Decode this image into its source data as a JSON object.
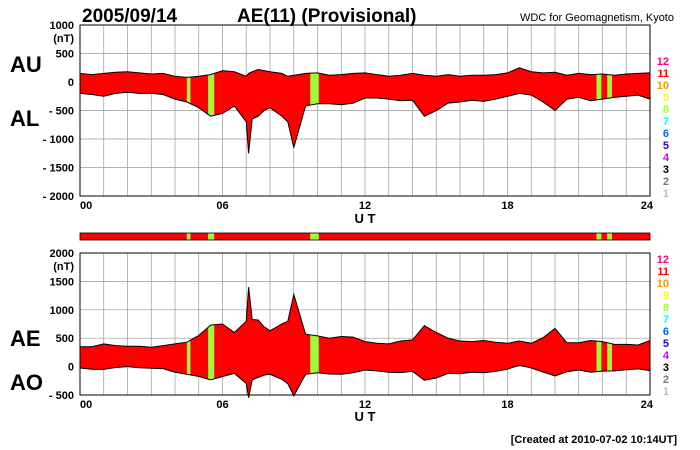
{
  "header": {
    "date": "2005/09/14",
    "title": "AE(11) (Provisional)",
    "credit": "WDC for Geomagnetism, Kyoto"
  },
  "footer": "[Created at 2010-07-02 10:14UT]",
  "x_ticks": [
    "00",
    "06",
    "12",
    "18",
    "24"
  ],
  "xlabel": "U T",
  "top_panel": {
    "unit": "(nT)",
    "labels": [
      "AU",
      "AL"
    ],
    "ylim": [
      -2000,
      1000
    ],
    "yticks": [
      {
        "value": 1000,
        "label": "1000"
      },
      {
        "value": 500,
        "label": "500"
      },
      {
        "value": 0,
        "label": "0"
      },
      {
        "value": -500,
        "label": "- 500"
      },
      {
        "value": -1000,
        "label": "- 1000"
      },
      {
        "value": -1500,
        "label": "- 1500"
      },
      {
        "value": -2000,
        "label": "- 2000"
      }
    ]
  },
  "bottom_panel": {
    "unit": "(nT)",
    "labels": [
      "AE",
      "AO"
    ],
    "ylim": [
      -500,
      2000
    ],
    "yticks": [
      {
        "value": 2000,
        "label": "2000"
      },
      {
        "value": 1500,
        "label": "1500"
      },
      {
        "value": 1000,
        "label": "1000"
      },
      {
        "value": 500,
        "label": "500"
      },
      {
        "value": 0,
        "label": "0"
      },
      {
        "value": -500,
        "label": "- 500"
      }
    ]
  },
  "station_levels": [
    {
      "label": "12",
      "color": "#ff0080"
    },
    {
      "label": "11",
      "color": "#ff0000"
    },
    {
      "label": "10",
      "color": "#ff9900"
    },
    {
      "label": "9",
      "color": "#ffff00"
    },
    {
      "label": "8",
      "color": "#99ff33"
    },
    {
      "label": "7",
      "color": "#00ffff"
    },
    {
      "label": "6",
      "color": "#0066ff"
    },
    {
      "label": "5",
      "color": "#3300cc"
    },
    {
      "label": "4",
      "color": "#cc00ff"
    },
    {
      "label": "3",
      "color": "#000000"
    },
    {
      "label": "2",
      "color": "#777777"
    },
    {
      "label": "1",
      "color": "#bbbbbb"
    }
  ],
  "colors": {
    "fill_stations_11": "#ffff00",
    "fill_stations_8": "#99ff33",
    "grid": "#999999",
    "line": "#000000"
  },
  "chart_data": {
    "type": "area",
    "x_unit": "UT hours",
    "xlim": [
      0,
      24
    ],
    "band_colors": [
      {
        "x0": 0.0,
        "x1": 4.5,
        "level": 11
      },
      {
        "x0": 4.5,
        "x1": 4.65,
        "level": 8
      },
      {
        "x0": 4.65,
        "x1": 5.4,
        "level": 11
      },
      {
        "x0": 5.4,
        "x1": 5.65,
        "level": 8
      },
      {
        "x0": 5.65,
        "x1": 9.7,
        "level": 11
      },
      {
        "x0": 9.7,
        "x1": 10.05,
        "level": 8
      },
      {
        "x0": 10.05,
        "x1": 21.75,
        "level": 11
      },
      {
        "x0": 21.75,
        "x1": 21.95,
        "level": 8
      },
      {
        "x0": 21.95,
        "x1": 22.2,
        "level": 11
      },
      {
        "x0": 22.2,
        "x1": 22.4,
        "level": 8
      },
      {
        "x0": 22.4,
        "x1": 24.0,
        "level": 11
      }
    ],
    "x": [
      0,
      0.5,
      1,
      1.5,
      2,
      2.5,
      3,
      3.5,
      4,
      4.5,
      5,
      5.5,
      6,
      6.5,
      7,
      7.1,
      7.25,
      7.5,
      7.75,
      8,
      8.5,
      8.75,
      9,
      9.5,
      10,
      10.5,
      11,
      11.5,
      12,
      12.5,
      13,
      13.5,
      14,
      14.5,
      15,
      15.5,
      16,
      16.5,
      17,
      17.5,
      18,
      18.5,
      19,
      19.5,
      20,
      20.5,
      21,
      21.5,
      22,
      22.5,
      23,
      23.5,
      24
    ],
    "series": [
      {
        "name": "AU",
        "values": [
          150,
          130,
          150,
          170,
          180,
          160,
          140,
          150,
          100,
          80,
          100,
          130,
          200,
          180,
          100,
          150,
          180,
          220,
          200,
          180,
          150,
          100,
          120,
          150,
          160,
          120,
          130,
          150,
          160,
          130,
          100,
          120,
          150,
          120,
          100,
          130,
          100,
          120,
          120,
          130,
          160,
          250,
          180,
          160,
          170,
          120,
          150,
          130,
          140,
          120,
          140,
          150,
          160
        ]
      },
      {
        "name": "AL",
        "values": [
          -200,
          -220,
          -250,
          -200,
          -180,
          -200,
          -200,
          -220,
          -300,
          -350,
          -450,
          -600,
          -550,
          -420,
          -700,
          -1250,
          -650,
          -600,
          -500,
          -450,
          -600,
          -700,
          -1150,
          -420,
          -380,
          -380,
          -400,
          -370,
          -280,
          -280,
          -300,
          -330,
          -320,
          -600,
          -500,
          -370,
          -350,
          -320,
          -340,
          -300,
          -250,
          -200,
          -230,
          -350,
          -500,
          -300,
          -270,
          -330,
          -300,
          -270,
          -250,
          -230,
          -300
        ]
      },
      {
        "name": "AE",
        "values": [
          350,
          350,
          400,
          370,
          360,
          360,
          340,
          370,
          400,
          430,
          550,
          730,
          750,
          600,
          800,
          1400,
          830,
          820,
          700,
          630,
          750,
          800,
          1270,
          570,
          540,
          500,
          530,
          520,
          440,
          410,
          400,
          450,
          470,
          720,
          600,
          500,
          450,
          440,
          460,
          430,
          410,
          450,
          410,
          510,
          670,
          420,
          420,
          460,
          440,
          390,
          390,
          380,
          460
        ]
      },
      {
        "name": "AO",
        "values": [
          -25,
          -45,
          -50,
          -15,
          0,
          -20,
          -30,
          -35,
          -100,
          -135,
          -175,
          -235,
          -175,
          -120,
          -300,
          -550,
          -235,
          -190,
          -150,
          -135,
          -225,
          -300,
          -515,
          -135,
          -110,
          -130,
          -135,
          -110,
          -60,
          -75,
          -100,
          -105,
          -85,
          -240,
          -200,
          -120,
          -125,
          -100,
          -110,
          -85,
          -45,
          25,
          -25,
          -95,
          -165,
          -90,
          -60,
          -100,
          -80,
          -75,
          -55,
          -40,
          -70
        ]
      }
    ]
  }
}
